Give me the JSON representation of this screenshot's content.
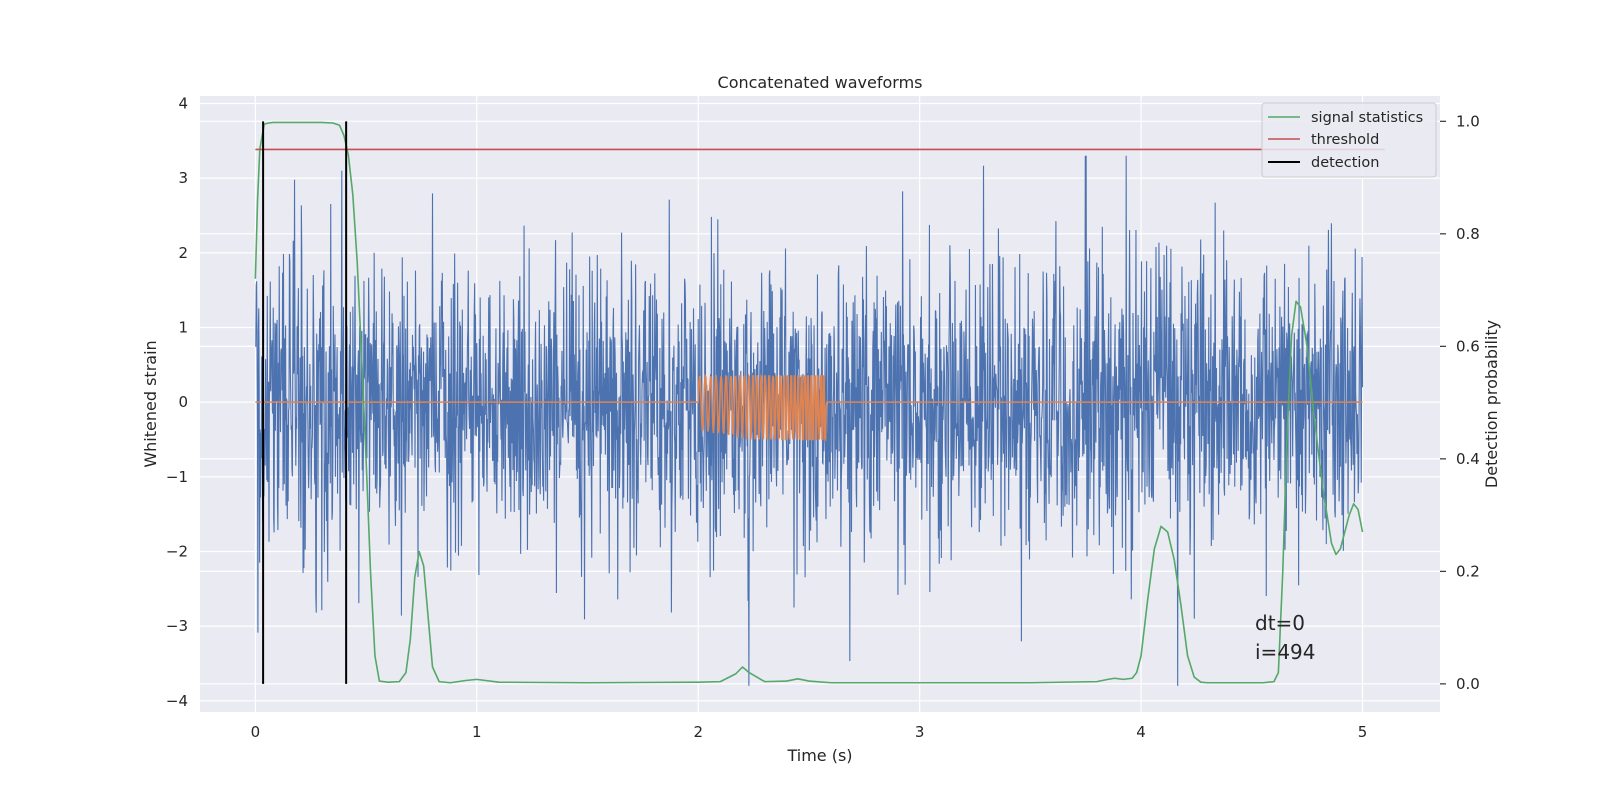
{
  "chart_data": {
    "type": "line",
    "title": "Concatenated waveforms",
    "xlabel": "Time (s)",
    "ylabel": "Whitened strain",
    "ylabel_right": "Detection probability",
    "xlim": [
      -0.25,
      5.35
    ],
    "ylim": [
      -4.15,
      4.1
    ],
    "ylim_right": [
      -0.05,
      1.045
    ],
    "x_ticks": [
      0,
      1,
      2,
      3,
      4,
      5
    ],
    "x_tick_labels": [
      "0",
      "1",
      "2",
      "3",
      "4",
      "5"
    ],
    "y_ticks": [
      -4,
      -3,
      -2,
      -1,
      0,
      1,
      2,
      3,
      4
    ],
    "y_tick_labels": [
      "−4",
      "−3",
      "−2",
      "−1",
      "0",
      "1",
      "2",
      "3",
      "4"
    ],
    "y2_ticks": [
      0.0,
      0.2,
      0.4,
      0.6,
      0.8,
      1.0
    ],
    "y2_tick_labels": [
      "0.0",
      "0.2",
      "0.4",
      "0.6",
      "0.8",
      "1.0"
    ],
    "grid": true,
    "legend_position": "top-right",
    "legend": [
      "signal statistics",
      "threshold",
      "detection"
    ],
    "colors": {
      "background": "#eaeaf2",
      "grid": "#ffffff",
      "whitened_strain": "#4c72b0",
      "template": "#dd8452",
      "signal_statistics": "#55a868",
      "threshold": "#c44e52",
      "detection": "#000000"
    },
    "series": [
      {
        "name": "signal statistics",
        "axis": "right",
        "x": [
          0.0,
          0.01,
          0.02,
          0.04,
          0.06,
          0.08,
          0.1,
          0.15,
          0.2,
          0.3,
          0.35,
          0.38,
          0.4,
          0.42,
          0.44,
          0.46,
          0.48,
          0.5,
          0.52,
          0.54,
          0.56,
          0.6,
          0.65,
          0.68,
          0.7,
          0.72,
          0.74,
          0.76,
          0.78,
          0.8,
          0.83,
          0.88,
          0.95,
          1.0,
          1.1,
          1.5,
          2.0,
          2.1,
          2.17,
          2.2,
          2.23,
          2.3,
          2.4,
          2.45,
          2.5,
          2.6,
          3.0,
          3.5,
          3.8,
          3.85,
          3.88,
          3.92,
          3.96,
          3.98,
          4.0,
          4.03,
          4.06,
          4.09,
          4.12,
          4.15,
          4.18,
          4.21,
          4.24,
          4.27,
          4.3,
          4.35,
          4.45,
          4.55,
          4.6,
          4.62,
          4.64,
          4.66,
          4.68,
          4.7,
          4.72,
          4.75,
          4.78,
          4.82,
          4.86,
          4.88,
          4.9,
          4.92,
          4.94,
          4.96,
          4.98,
          5.0
        ],
        "values": [
          0.72,
          0.86,
          0.95,
          0.995,
          0.997,
          0.998,
          0.998,
          0.998,
          0.998,
          0.998,
          0.997,
          0.993,
          0.975,
          0.94,
          0.87,
          0.75,
          0.58,
          0.4,
          0.2,
          0.05,
          0.005,
          0.003,
          0.004,
          0.02,
          0.08,
          0.19,
          0.235,
          0.21,
          0.12,
          0.03,
          0.004,
          0.002,
          0.006,
          0.008,
          0.003,
          0.002,
          0.003,
          0.004,
          0.018,
          0.03,
          0.02,
          0.004,
          0.005,
          0.009,
          0.005,
          0.002,
          0.002,
          0.002,
          0.004,
          0.008,
          0.01,
          0.008,
          0.01,
          0.02,
          0.05,
          0.15,
          0.24,
          0.28,
          0.27,
          0.22,
          0.14,
          0.05,
          0.012,
          0.003,
          0.002,
          0.002,
          0.002,
          0.002,
          0.004,
          0.02,
          0.2,
          0.45,
          0.62,
          0.68,
          0.67,
          0.6,
          0.48,
          0.35,
          0.25,
          0.23,
          0.24,
          0.27,
          0.3,
          0.32,
          0.31,
          0.27
        ]
      },
      {
        "name": "threshold",
        "axis": "right",
        "x": [
          0.0,
          5.1
        ],
        "values": [
          0.95,
          0.95
        ]
      },
      {
        "name": "detection",
        "axis": "right",
        "type": "vlines",
        "x": [
          0.035,
          0.41
        ],
        "range": [
          0.0,
          1.0
        ]
      }
    ],
    "annotations": [
      "dt=0",
      "i=494"
    ]
  }
}
